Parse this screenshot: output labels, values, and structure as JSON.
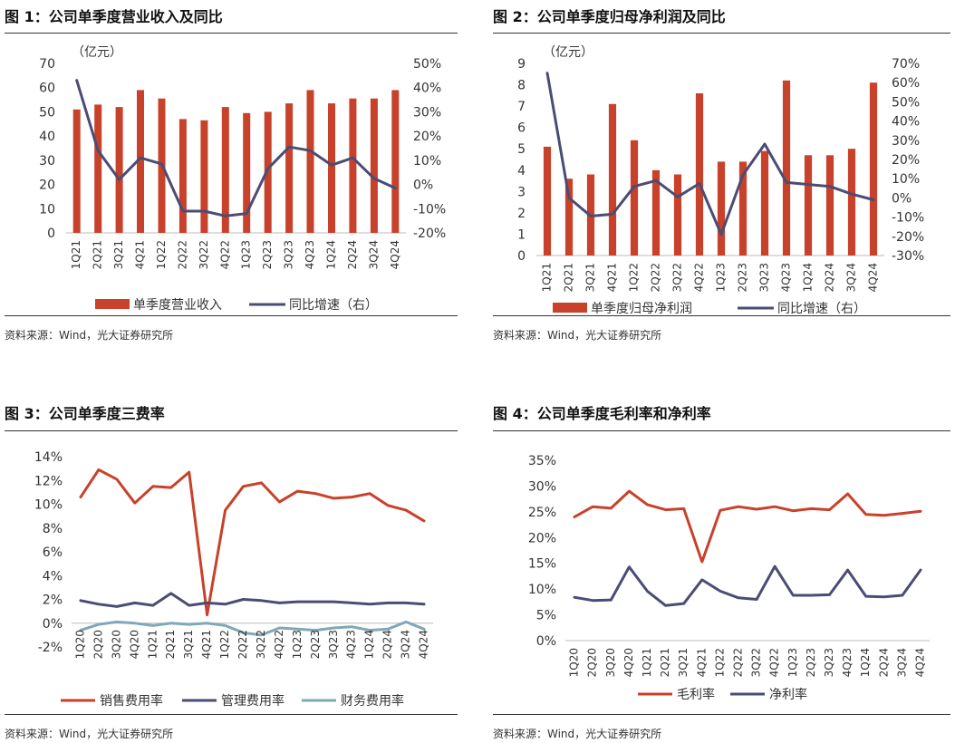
{
  "chart_data": [
    {
      "type": "bar",
      "title": "图 1：公司单季度营业收入及同比",
      "unit_label": "（亿元）",
      "source": "资料来源：Wind，光大证券研究所",
      "categories": [
        "1Q21",
        "2Q21",
        "3Q21",
        "4Q21",
        "1Q22",
        "2Q22",
        "3Q22",
        "4Q22",
        "1Q23",
        "2Q23",
        "3Q23",
        "4Q23",
        "1Q24",
        "2Q24",
        "3Q24",
        "4Q24"
      ],
      "series": [
        {
          "name": "单季度营业收入",
          "type": "bar",
          "axis": "left",
          "color": "#C8412A",
          "values": [
            51,
            53,
            52,
            59,
            55.5,
            47,
            46.5,
            52,
            49.5,
            50,
            53.5,
            59,
            53.5,
            55.5,
            55.5,
            59
          ]
        },
        {
          "name": "同比增速（右）",
          "type": "line",
          "axis": "right",
          "color": "#4B4C75",
          "values": [
            43,
            14,
            2,
            11,
            8.5,
            -11,
            -11,
            -13,
            -12,
            6.5,
            15.5,
            14,
            8,
            11,
            2.5,
            -1.5
          ]
        }
      ],
      "yleft": {
        "min": 0,
        "max": 70,
        "step": 10,
        "ticks": [
          "0",
          "10",
          "20",
          "30",
          "40",
          "50",
          "60",
          "70"
        ]
      },
      "yright": {
        "min": -20,
        "max": 50,
        "step": 10,
        "ticks": [
          "-20%",
          "-10%",
          "0%",
          "10%",
          "20%",
          "30%",
          "40%",
          "50%"
        ]
      },
      "legend_position": "bottom"
    },
    {
      "type": "bar",
      "title": "图 2：公司单季度归母净利润及同比",
      "unit_label": "（亿元）",
      "source": "资料来源：Wind，光大证券研究所",
      "categories": [
        "1Q21",
        "2Q21",
        "3Q21",
        "4Q21",
        "1Q22",
        "2Q22",
        "3Q22",
        "4Q22",
        "1Q23",
        "2Q23",
        "3Q23",
        "4Q23",
        "1Q24",
        "2Q24",
        "3Q24",
        "4Q24"
      ],
      "series": [
        {
          "name": "单季度归母净利润",
          "type": "bar",
          "axis": "left",
          "color": "#C8412A",
          "values": [
            5.1,
            3.6,
            3.8,
            7.1,
            5.4,
            4.0,
            3.8,
            7.6,
            4.4,
            4.4,
            4.9,
            8.2,
            4.7,
            4.7,
            5.0,
            8.1
          ]
        },
        {
          "name": "同比增速（右）",
          "type": "line",
          "axis": "right",
          "color": "#4B4C75",
          "values": [
            65,
            0,
            -9.5,
            -8.5,
            6,
            9,
            0.5,
            7.5,
            -19,
            12,
            28,
            8,
            7,
            6,
            2,
            -1
          ]
        }
      ],
      "yleft": {
        "min": 0,
        "max": 9,
        "step": 1,
        "ticks": [
          "0",
          "1",
          "2",
          "3",
          "4",
          "5",
          "6",
          "7",
          "8",
          "9"
        ]
      },
      "yright": {
        "min": -30,
        "max": 70,
        "step": 10,
        "ticks": [
          "-30%",
          "-20%",
          "-10%",
          "0%",
          "10%",
          "20%",
          "30%",
          "40%",
          "50%",
          "60%",
          "70%"
        ]
      },
      "legend_position": "bottom"
    },
    {
      "type": "line",
      "title": "图 3：公司单季度三费率",
      "source": "资料来源：Wind，光大证券研究所",
      "categories": [
        "1Q20",
        "2Q20",
        "3Q20",
        "4Q20",
        "1Q21",
        "2Q21",
        "3Q21",
        "4Q21",
        "1Q22",
        "2Q22",
        "3Q22",
        "4Q22",
        "1Q23",
        "2Q23",
        "3Q23",
        "4Q23",
        "1Q24",
        "2Q24",
        "3Q24",
        "4Q24"
      ],
      "series": [
        {
          "name": "销售费用率",
          "color": "#C8412A",
          "values": [
            10.6,
            12.9,
            12.1,
            10.1,
            11.5,
            11.4,
            12.7,
            0.7,
            9.5,
            11.5,
            11.8,
            10.2,
            11.1,
            10.9,
            10.5,
            10.6,
            10.9,
            9.9,
            9.5,
            8.6
          ]
        },
        {
          "name": "管理费用率",
          "color": "#4B4C75",
          "values": [
            1.9,
            1.6,
            1.4,
            1.7,
            1.5,
            2.5,
            1.5,
            1.7,
            1.6,
            2.0,
            1.9,
            1.7,
            1.8,
            1.8,
            1.8,
            1.7,
            1.6,
            1.7,
            1.7,
            1.6
          ]
        },
        {
          "name": "财务费用率",
          "color": "#7FA8B8",
          "values": [
            -0.6,
            -0.1,
            0.1,
            0.0,
            -0.2,
            0.0,
            -0.1,
            0.0,
            -0.2,
            -0.8,
            -1.0,
            -0.4,
            -0.5,
            -0.6,
            -0.4,
            -0.3,
            -0.6,
            -0.5,
            0.1,
            -0.5
          ]
        }
      ],
      "yaxis": {
        "min": -2,
        "max": 14,
        "step": 2,
        "ticks": [
          "-2%",
          "0%",
          "2%",
          "4%",
          "6%",
          "8%",
          "10%",
          "12%",
          "14%"
        ]
      },
      "legend_position": "bottom"
    },
    {
      "type": "line",
      "title": "图 4：公司单季度毛利率和净利率",
      "source": "资料来源：Wind，光大证券研究所",
      "categories": [
        "1Q20",
        "2Q20",
        "3Q20",
        "4Q20",
        "1Q21",
        "2Q21",
        "3Q21",
        "4Q21",
        "1Q22",
        "2Q22",
        "3Q22",
        "4Q22",
        "1Q23",
        "2Q23",
        "3Q23",
        "4Q23",
        "1Q24",
        "2Q24",
        "3Q24",
        "4Q24"
      ],
      "series": [
        {
          "name": "毛利率",
          "color": "#C8412A",
          "values": [
            24,
            26,
            25.7,
            29,
            26.4,
            25.4,
            25.6,
            15.3,
            25.3,
            26,
            25.5,
            26,
            25.2,
            25.6,
            25.4,
            28.5,
            24.5,
            24.3,
            24.7,
            25.1
          ]
        },
        {
          "name": "净利率",
          "color": "#4B4C75",
          "values": [
            8.4,
            7.8,
            7.9,
            14.3,
            9.6,
            6.8,
            7.2,
            11.8,
            9.6,
            8.3,
            8.0,
            14.4,
            8.8,
            8.8,
            8.9,
            13.7,
            8.6,
            8.5,
            8.8,
            13.7
          ]
        }
      ],
      "yaxis": {
        "min": 0,
        "max": 35,
        "step": 5,
        "ticks": [
          "0%",
          "5%",
          "10%",
          "15%",
          "20%",
          "25%",
          "30%",
          "35%"
        ]
      },
      "legend_position": "bottom"
    }
  ]
}
